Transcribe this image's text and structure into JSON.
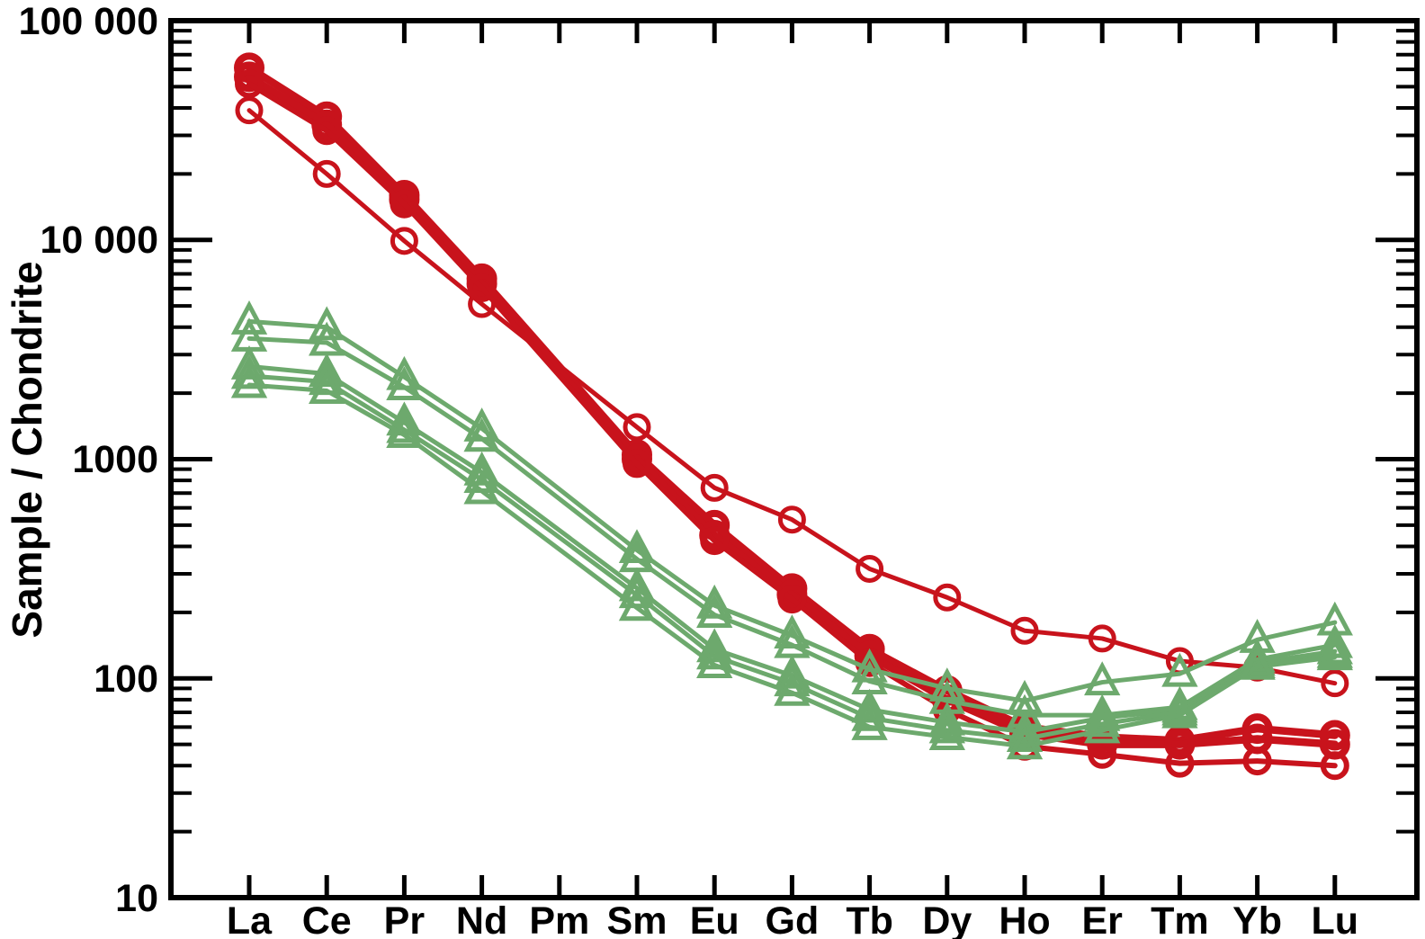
{
  "chart_data": {
    "type": "line",
    "title": "",
    "xlabel": "",
    "ylabel": "Sample / Chondrite",
    "scale": "log",
    "ylim": [
      10,
      100000
    ],
    "grid": false,
    "legend": "none",
    "y_tick_labels": [
      "100 000",
      "10 000",
      "1000",
      "100",
      "10"
    ],
    "y_tick_values": [
      100000,
      10000,
      1000,
      100,
      10
    ],
    "categories": [
      "La",
      "Ce",
      "Pr",
      "Nd",
      "Pm",
      "Sm",
      "Eu",
      "Gd",
      "Tb",
      "Dy",
      "Ho",
      "Er",
      "Tm",
      "Yb",
      "Lu"
    ],
    "colors": {
      "red": "#c8131c",
      "green": "#6da96d",
      "axis": "#000000"
    },
    "series": [
      {
        "name": "red-circle-thin",
        "marker": "circle",
        "color": "#c8131c",
        "weight": "thin",
        "values": [
          39000,
          20000,
          9900,
          5100,
          null,
          1400,
          740,
          530,
          316,
          234,
          165,
          152,
          120,
          112,
          95
        ]
      },
      {
        "name": "red-circle-thick-1",
        "marker": "circle",
        "color": "#c8131c",
        "weight": "thick",
        "values": [
          61000,
          36500,
          16000,
          6650,
          null,
          1050,
          500,
          257,
          136,
          88,
          60,
          54,
          52,
          59,
          55
        ]
      },
      {
        "name": "red-circle-thick-2",
        "marker": "circle",
        "color": "#c8131c",
        "weight": "thick",
        "values": [
          55500,
          33500,
          15300,
          6300,
          null,
          1000,
          450,
          241,
          127,
          80,
          56,
          50,
          50,
          53,
          50
        ]
      },
      {
        "name": "red-circle-medium",
        "marker": "circle",
        "color": "#c8131c",
        "weight": "medium",
        "values": [
          51500,
          31500,
          14600,
          6050,
          null,
          955,
          425,
          230,
          118,
          72,
          49,
          45,
          41,
          42,
          40
        ]
      },
      {
        "name": "green-triangle-1",
        "marker": "triangle",
        "color": "#6da96d",
        "weight": "thin",
        "values": [
          4250,
          4000,
          2370,
          1380,
          null,
          385,
          215,
          157,
          110,
          90,
          79,
          96,
          105,
          150,
          180
        ]
      },
      {
        "name": "green-triangle-2",
        "marker": "triangle",
        "color": "#6da96d",
        "weight": "thin",
        "values": [
          3550,
          3400,
          2130,
          1240,
          null,
          350,
          195,
          142,
          97,
          79,
          68,
          68,
          74,
          122,
          142
        ]
      },
      {
        "name": "green-triangle-3",
        "marker": "triangle",
        "color": "#6da96d",
        "weight": "thin",
        "values": [
          2650,
          2450,
          1470,
          870,
          null,
          258,
          136,
          103,
          72,
          63,
          57,
          66,
          72,
          118,
          133
        ]
      },
      {
        "name": "green-triangle-4",
        "marker": "triangle",
        "color": "#6da96d",
        "weight": "thin",
        "values": [
          2400,
          2250,
          1360,
          805,
          null,
          240,
          126,
          95,
          66,
          58,
          53,
          62,
          70,
          115,
          128
        ]
      },
      {
        "name": "green-triangle-5",
        "marker": "triangle",
        "color": "#6da96d",
        "weight": "thin",
        "values": [
          2180,
          2050,
          1290,
          715,
          null,
          210,
          115,
          86,
          60,
          54,
          49,
          58,
          68,
          113,
          125
        ]
      }
    ]
  }
}
